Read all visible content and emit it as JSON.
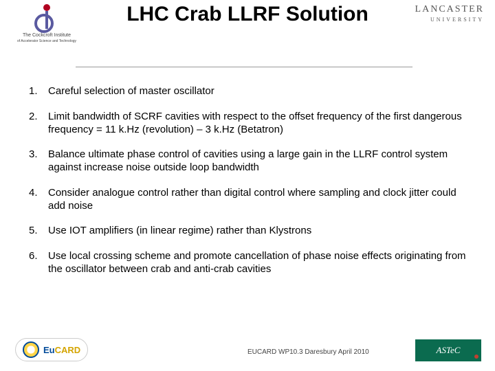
{
  "title": "LHC Crab LLRF Solution",
  "title_fontsize": 30,
  "title_color": "#000000",
  "logos": {
    "left": {
      "name": "The Cockcroft Institute",
      "tagline": "of Accelerator Science and Technology"
    },
    "right": {
      "name": "LANCASTER",
      "tagline": "UNIVERSITY"
    }
  },
  "points": [
    "Careful selection of master oscillator",
    "Limit bandwidth of SCRF cavities with respect to the offset frequency  of the first dangerous frequency = 11 k.Hz (revolution) – 3 k.Hz  (Betatron)",
    "Balance ultimate phase control of cavities using a large gain in the LLRF control system against increase noise outside loop bandwidth",
    "Consider analogue control rather than digital control where sampling and clock jitter could add noise",
    "Use IOT amplifiers (in linear regime) rather than Klystrons",
    "Use local crossing scheme and promote cancellation of phase noise effects originating from the oscillator between crab and anti-crab cavities"
  ],
  "list_fontsize": 15,
  "list_color": "#000000",
  "footer": {
    "text": "EUCARD WP10.3 Daresbury April 2010",
    "eucard": "EuCARD",
    "astec": "ASTeC"
  },
  "background_color": "#ffffff",
  "divider_color": "#999999"
}
